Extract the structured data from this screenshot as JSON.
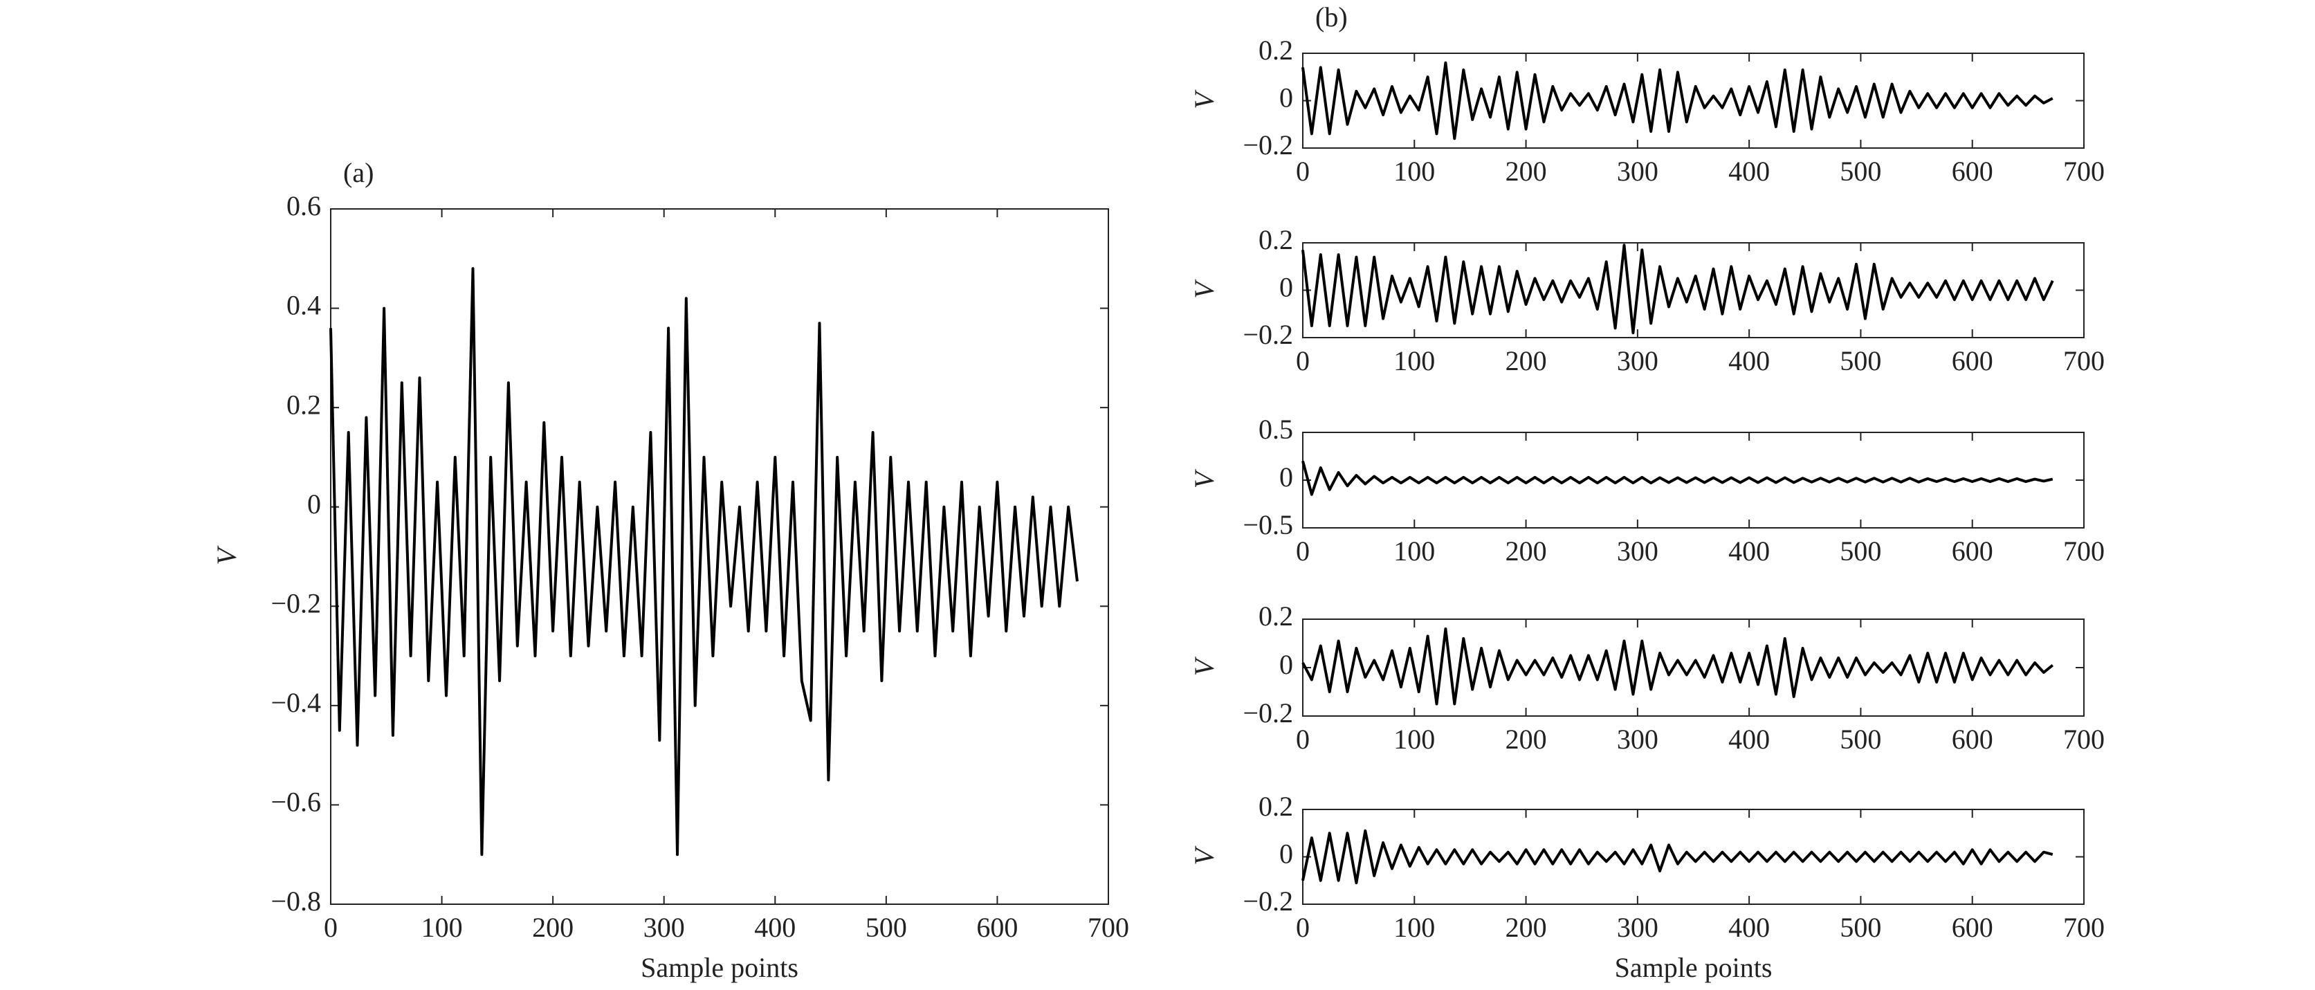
{
  "chart_data": [
    {
      "type": "line",
      "label": "(a)",
      "ylabel": "V",
      "xlabel": "Sample points",
      "color": "#000000",
      "xlim": [
        0,
        700
      ],
      "xticks": [
        0,
        100,
        200,
        300,
        400,
        500,
        600,
        700
      ],
      "ylim": [
        -0.8,
        0.6
      ],
      "yticks": [
        {
          "value": -0.8,
          "label": "−0.8"
        },
        {
          "value": -0.6,
          "label": "−0.6"
        },
        {
          "value": -0.4,
          "label": "−0.4"
        },
        {
          "value": -0.2,
          "label": "−0.2"
        },
        0,
        0.2,
        0.4,
        0.6
      ],
      "x": [
        0,
        8,
        16,
        24,
        32,
        40,
        48,
        56,
        64,
        72,
        80,
        88,
        96,
        104,
        112,
        120,
        128,
        136,
        144,
        152,
        160,
        168,
        176,
        184,
        192,
        200,
        208,
        216,
        224,
        232,
        240,
        248,
        256,
        264,
        272,
        280,
        288,
        296,
        304,
        312,
        320,
        328,
        336,
        344,
        352,
        360,
        368,
        376,
        384,
        392,
        400,
        408,
        416,
        424,
        432,
        440,
        448,
        456,
        464,
        472,
        480,
        488,
        496,
        504,
        512,
        520,
        528,
        536,
        544,
        552,
        560,
        568,
        576,
        584,
        592,
        600,
        608,
        616,
        624,
        632,
        640,
        648,
        656,
        664,
        672
      ],
      "values": [
        0.36,
        -0.45,
        0.15,
        -0.48,
        0.18,
        -0.38,
        0.4,
        -0.46,
        0.25,
        -0.3,
        0.26,
        -0.35,
        0.05,
        -0.38,
        0.1,
        -0.3,
        0.48,
        -0.7,
        0.1,
        -0.35,
        0.25,
        -0.28,
        0.05,
        -0.3,
        0.17,
        -0.25,
        0.1,
        -0.3,
        0.05,
        -0.28,
        0,
        -0.25,
        0.05,
        -0.3,
        0,
        -0.3,
        0.15,
        -0.47,
        0.36,
        -0.7,
        0.42,
        -0.4,
        0.1,
        -0.3,
        0.05,
        -0.2,
        0,
        -0.25,
        0.05,
        -0.25,
        0.1,
        -0.3,
        0.05,
        -0.35,
        -0.43,
        0.37,
        -0.55,
        0.1,
        -0.3,
        0.05,
        -0.25,
        0.15,
        -0.35,
        0.1,
        -0.25,
        0.05,
        -0.25,
        0.05,
        -0.3,
        0,
        -0.25,
        0.05,
        -0.3,
        0,
        -0.22,
        0.05,
        -0.25,
        0,
        -0.22,
        0.02,
        -0.2,
        0,
        -0.2,
        0,
        -0.15
      ]
    },
    {
      "type": "line",
      "label": "(b)",
      "ylabel": "V",
      "color": "#000000",
      "xlim": [
        0,
        700
      ],
      "xticks": [
        0,
        100,
        200,
        300,
        400,
        500,
        600,
        700
      ],
      "ylim": [
        -0.2,
        0.2
      ],
      "yticks": [
        {
          "value": -0.2,
          "label": "−0.2"
        },
        0,
        0.2
      ],
      "x": [
        0,
        8,
        16,
        24,
        32,
        40,
        48,
        56,
        64,
        72,
        80,
        88,
        96,
        104,
        112,
        120,
        128,
        136,
        144,
        152,
        160,
        168,
        176,
        184,
        192,
        200,
        208,
        216,
        224,
        232,
        240,
        248,
        256,
        264,
        272,
        280,
        288,
        296,
        304,
        312,
        320,
        328,
        336,
        344,
        352,
        360,
        368,
        376,
        384,
        392,
        400,
        408,
        416,
        424,
        432,
        440,
        448,
        456,
        464,
        472,
        480,
        488,
        496,
        504,
        512,
        520,
        528,
        536,
        544,
        552,
        560,
        568,
        576,
        584,
        592,
        600,
        608,
        616,
        624,
        632,
        640,
        648,
        656,
        664,
        672
      ],
      "values": [
        0.14,
        -0.14,
        0.14,
        -0.14,
        0.13,
        -0.1,
        0.04,
        -0.03,
        0.05,
        -0.06,
        0.06,
        -0.05,
        0.02,
        -0.04,
        0.1,
        -0.14,
        0.16,
        -0.16,
        0.13,
        -0.08,
        0.05,
        -0.07,
        0.1,
        -0.12,
        0.12,
        -0.12,
        0.11,
        -0.09,
        0.06,
        -0.04,
        0.03,
        -0.02,
        0.03,
        -0.04,
        0.06,
        -0.06,
        0.07,
        -0.09,
        0.11,
        -0.13,
        0.13,
        -0.13,
        0.12,
        -0.09,
        0.06,
        -0.03,
        0.02,
        -0.03,
        0.05,
        -0.06,
        0.06,
        -0.05,
        0.08,
        -0.11,
        0.13,
        -0.13,
        0.13,
        -0.12,
        0.1,
        -0.07,
        0.05,
        -0.05,
        0.06,
        -0.07,
        0.07,
        -0.07,
        0.07,
        -0.05,
        0.04,
        -0.03,
        0.03,
        -0.03,
        0.03,
        -0.03,
        0.03,
        -0.03,
        0.03,
        -0.03,
        0.03,
        -0.02,
        0.02,
        -0.02,
        0.02,
        -0.01,
        0.01
      ]
    },
    {
      "type": "line",
      "ylabel": "V",
      "color": "#000000",
      "xlim": [
        0,
        700
      ],
      "xticks": [
        0,
        100,
        200,
        300,
        400,
        500,
        600,
        700
      ],
      "ylim": [
        -0.2,
        0.2
      ],
      "yticks": [
        {
          "value": -0.2,
          "label": "−0.2"
        },
        0,
        0.2
      ],
      "x": [
        0,
        8,
        16,
        24,
        32,
        40,
        48,
        56,
        64,
        72,
        80,
        88,
        96,
        104,
        112,
        120,
        128,
        136,
        144,
        152,
        160,
        168,
        176,
        184,
        192,
        200,
        208,
        216,
        224,
        232,
        240,
        248,
        256,
        264,
        272,
        280,
        288,
        296,
        304,
        312,
        320,
        328,
        336,
        344,
        352,
        360,
        368,
        376,
        384,
        392,
        400,
        408,
        416,
        424,
        432,
        440,
        448,
        456,
        464,
        472,
        480,
        488,
        496,
        504,
        512,
        520,
        528,
        536,
        544,
        552,
        560,
        568,
        576,
        584,
        592,
        600,
        608,
        616,
        624,
        632,
        640,
        648,
        656,
        664,
        672
      ],
      "values": [
        0.17,
        -0.15,
        0.15,
        -0.15,
        0.15,
        -0.15,
        0.14,
        -0.15,
        0.14,
        -0.12,
        0.06,
        -0.05,
        0.05,
        -0.07,
        0.1,
        -0.13,
        0.14,
        -0.14,
        0.12,
        -0.1,
        0.1,
        -0.1,
        0.1,
        -0.09,
        0.08,
        -0.06,
        0.05,
        -0.04,
        0.04,
        -0.05,
        0.04,
        -0.03,
        0.05,
        -0.08,
        0.12,
        -0.16,
        0.19,
        -0.18,
        0.17,
        -0.14,
        0.1,
        -0.07,
        0.05,
        -0.05,
        0.06,
        -0.08,
        0.09,
        -0.1,
        0.1,
        -0.08,
        0.06,
        -0.04,
        0.04,
        -0.06,
        0.09,
        -0.1,
        0.1,
        -0.09,
        0.07,
        -0.05,
        0.05,
        -0.08,
        0.11,
        -0.12,
        0.11,
        -0.08,
        0.05,
        -0.03,
        0.03,
        -0.03,
        0.03,
        -0.03,
        0.04,
        -0.04,
        0.04,
        -0.04,
        0.04,
        -0.04,
        0.04,
        -0.04,
        0.04,
        -0.04,
        0.05,
        -0.04,
        0.04
      ]
    },
    {
      "type": "line",
      "ylabel": "V",
      "color": "#000000",
      "xlim": [
        0,
        700
      ],
      "xticks": [
        0,
        100,
        200,
        300,
        400,
        500,
        600,
        700
      ],
      "ylim": [
        -0.5,
        0.5
      ],
      "yticks": [
        {
          "value": -0.5,
          "label": "−0.5"
        },
        0,
        0.5
      ],
      "x": [
        0,
        8,
        16,
        24,
        32,
        40,
        48,
        56,
        64,
        72,
        80,
        88,
        96,
        104,
        112,
        120,
        128,
        136,
        144,
        152,
        160,
        168,
        176,
        184,
        192,
        200,
        208,
        216,
        224,
        232,
        240,
        248,
        256,
        264,
        272,
        280,
        288,
        296,
        304,
        312,
        320,
        328,
        336,
        344,
        352,
        360,
        368,
        376,
        384,
        392,
        400,
        408,
        416,
        424,
        432,
        440,
        448,
        456,
        464,
        472,
        480,
        488,
        496,
        504,
        512,
        520,
        528,
        536,
        544,
        552,
        560,
        568,
        576,
        584,
        592,
        600,
        608,
        616,
        624,
        632,
        640,
        648,
        656,
        664,
        672
      ],
      "values": [
        0.2,
        -0.15,
        0.13,
        -0.1,
        0.08,
        -0.06,
        0.05,
        -0.04,
        0.04,
        -0.03,
        0.03,
        -0.03,
        0.03,
        -0.03,
        0.03,
        -0.03,
        0.03,
        -0.03,
        0.03,
        -0.03,
        0.03,
        -0.03,
        0.03,
        -0.03,
        0.03,
        -0.03,
        0.03,
        -0.03,
        0.03,
        -0.03,
        0.03,
        -0.03,
        0.03,
        -0.03,
        0.03,
        -0.03,
        0.03,
        -0.03,
        0.03,
        -0.03,
        0.025,
        -0.025,
        0.025,
        -0.025,
        0.025,
        -0.025,
        0.025,
        -0.025,
        0.025,
        -0.025,
        0.025,
        -0.025,
        0.025,
        -0.025,
        0.025,
        -0.025,
        0.02,
        -0.02,
        0.02,
        -0.02,
        0.02,
        -0.02,
        0.02,
        -0.02,
        0.02,
        -0.02,
        0.02,
        -0.02,
        0.02,
        -0.02,
        0.015,
        -0.015,
        0.015,
        -0.015,
        0.015,
        -0.015,
        0.015,
        -0.015,
        0.015,
        -0.015,
        0.015,
        -0.015,
        0.01,
        -0.01,
        0.01
      ]
    },
    {
      "type": "line",
      "ylabel": "V",
      "color": "#000000",
      "xlim": [
        0,
        700
      ],
      "xticks": [
        0,
        100,
        200,
        300,
        400,
        500,
        600,
        700
      ],
      "ylim": [
        -0.2,
        0.2
      ],
      "yticks": [
        {
          "value": -0.2,
          "label": "−0.2"
        },
        0,
        0.2
      ],
      "x": [
        0,
        8,
        16,
        24,
        32,
        40,
        48,
        56,
        64,
        72,
        80,
        88,
        96,
        104,
        112,
        120,
        128,
        136,
        144,
        152,
        160,
        168,
        176,
        184,
        192,
        200,
        208,
        216,
        224,
        232,
        240,
        248,
        256,
        264,
        272,
        280,
        288,
        296,
        304,
        312,
        320,
        328,
        336,
        344,
        352,
        360,
        368,
        376,
        384,
        392,
        400,
        408,
        416,
        424,
        432,
        440,
        448,
        456,
        464,
        472,
        480,
        488,
        496,
        504,
        512,
        520,
        528,
        536,
        544,
        552,
        560,
        568,
        576,
        584,
        592,
        600,
        608,
        616,
        624,
        632,
        640,
        648,
        656,
        664,
        672
      ],
      "values": [
        0.02,
        -0.05,
        0.09,
        -0.1,
        0.11,
        -0.1,
        0.08,
        -0.04,
        0.03,
        -0.05,
        0.07,
        -0.08,
        0.08,
        -0.1,
        0.13,
        -0.15,
        0.16,
        -0.15,
        0.12,
        -0.09,
        0.08,
        -0.08,
        0.07,
        -0.05,
        0.03,
        -0.03,
        0.03,
        -0.03,
        0.04,
        -0.04,
        0.05,
        -0.05,
        0.05,
        -0.05,
        0.07,
        -0.09,
        0.11,
        -0.11,
        0.11,
        -0.09,
        0.06,
        -0.03,
        0.03,
        -0.03,
        0.03,
        -0.04,
        0.05,
        -0.06,
        0.06,
        -0.06,
        0.06,
        -0.07,
        0.09,
        -0.11,
        0.12,
        -0.12,
        0.08,
        -0.05,
        0.04,
        -0.04,
        0.04,
        -0.04,
        0.04,
        -0.03,
        0.02,
        -0.02,
        0.02,
        -0.03,
        0.05,
        -0.06,
        0.06,
        -0.06,
        0.06,
        -0.06,
        0.06,
        -0.05,
        0.04,
        -0.03,
        0.03,
        -0.03,
        0.03,
        -0.03,
        0.02,
        -0.02,
        0.01
      ]
    },
    {
      "type": "line",
      "ylabel": "V",
      "xlabel": "Sample points",
      "color": "#000000",
      "xlim": [
        0,
        700
      ],
      "xticks": [
        0,
        100,
        200,
        300,
        400,
        500,
        600,
        700
      ],
      "ylim": [
        -0.2,
        0.2
      ],
      "yticks": [
        {
          "value": -0.2,
          "label": "−0.2"
        },
        0,
        0.2
      ],
      "x": [
        0,
        8,
        16,
        24,
        32,
        40,
        48,
        56,
        64,
        72,
        80,
        88,
        96,
        104,
        112,
        120,
        128,
        136,
        144,
        152,
        160,
        168,
        176,
        184,
        192,
        200,
        208,
        216,
        224,
        232,
        240,
        248,
        256,
        264,
        272,
        280,
        288,
        296,
        304,
        312,
        320,
        328,
        336,
        344,
        352,
        360,
        368,
        376,
        384,
        392,
        400,
        408,
        416,
        424,
        432,
        440,
        448,
        456,
        464,
        472,
        480,
        488,
        496,
        504,
        512,
        520,
        528,
        536,
        544,
        552,
        560,
        568,
        576,
        584,
        592,
        600,
        608,
        616,
        624,
        632,
        640,
        648,
        656,
        664,
        672
      ],
      "values": [
        -0.1,
        0.08,
        -0.1,
        0.1,
        -0.1,
        0.1,
        -0.11,
        0.11,
        -0.08,
        0.06,
        -0.05,
        0.05,
        -0.04,
        0.04,
        -0.03,
        0.03,
        -0.03,
        0.03,
        -0.03,
        0.03,
        -0.03,
        0.02,
        -0.02,
        0.02,
        -0.03,
        0.03,
        -0.03,
        0.03,
        -0.03,
        0.03,
        -0.03,
        0.03,
        -0.03,
        0.02,
        -0.02,
        0.02,
        -0.03,
        0.03,
        -0.03,
        0.05,
        -0.06,
        0.05,
        -0.03,
        0.02,
        -0.02,
        0.02,
        -0.02,
        0.02,
        -0.02,
        0.02,
        -0.02,
        0.02,
        -0.02,
        0.02,
        -0.02,
        0.02,
        -0.02,
        0.02,
        -0.02,
        0.02,
        -0.02,
        0.02,
        -0.02,
        0.02,
        -0.02,
        0.02,
        -0.02,
        0.02,
        -0.02,
        0.02,
        -0.02,
        0.02,
        -0.02,
        0.02,
        -0.03,
        0.03,
        -0.03,
        0.03,
        -0.02,
        0.02,
        -0.02,
        0.02,
        -0.02,
        0.02,
        0.01
      ]
    }
  ]
}
